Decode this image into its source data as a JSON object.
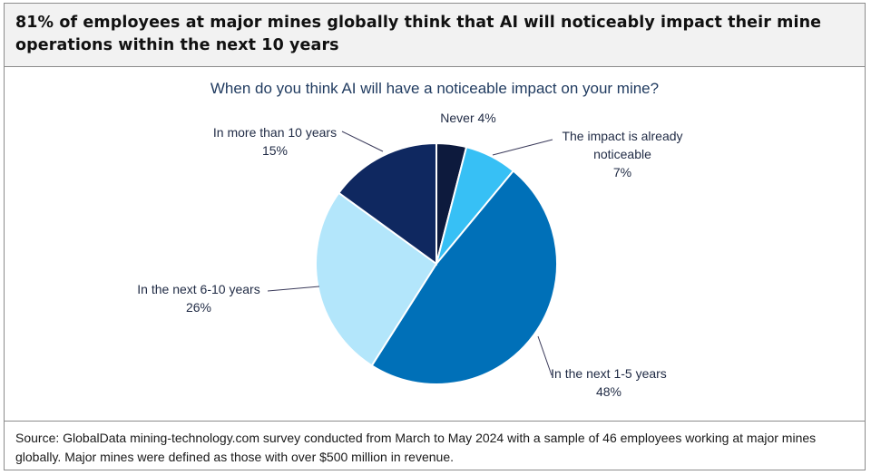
{
  "header": {
    "title": "81% of employees at major mines globally think that AI will noticeably impact their mine operations within the next 10 years"
  },
  "chart_data": {
    "type": "pie",
    "title": "When do you think  AI will have a noticeable impact on your mine?",
    "slices": [
      {
        "label": "Never",
        "value": 4,
        "value_label": "Never 4%",
        "color": "#0d1a3d"
      },
      {
        "label": "The impact is already noticeable",
        "value": 7,
        "label_lines": [
          "The impact is already",
          "noticeable"
        ],
        "value_label": "7%",
        "color": "#37c0f5"
      },
      {
        "label": "In the next 1-5 years",
        "value": 48,
        "label_lines": [
          "In the next 1-5 years"
        ],
        "value_label": "48%",
        "color": "#0070b8"
      },
      {
        "label": "In the next 6-10 years",
        "value": 26,
        "label_lines": [
          "In the next 6-10 years"
        ],
        "value_label": "26%",
        "color": "#b3e6fb"
      },
      {
        "label": "In more than 10 years",
        "value": 15,
        "label_lines": [
          "In more than 10 years"
        ],
        "value_label": "15%",
        "color": "#0f2860"
      }
    ],
    "start": "12 o'clock",
    "direction": "clockwise",
    "legend": "none"
  },
  "footer": {
    "source": "Source: GlobalData mining-technology.com survey conducted from March to May 2024 with a sample of 46 employees working at major mines globally. Major mines were defined as those with over $500 million in revenue."
  }
}
